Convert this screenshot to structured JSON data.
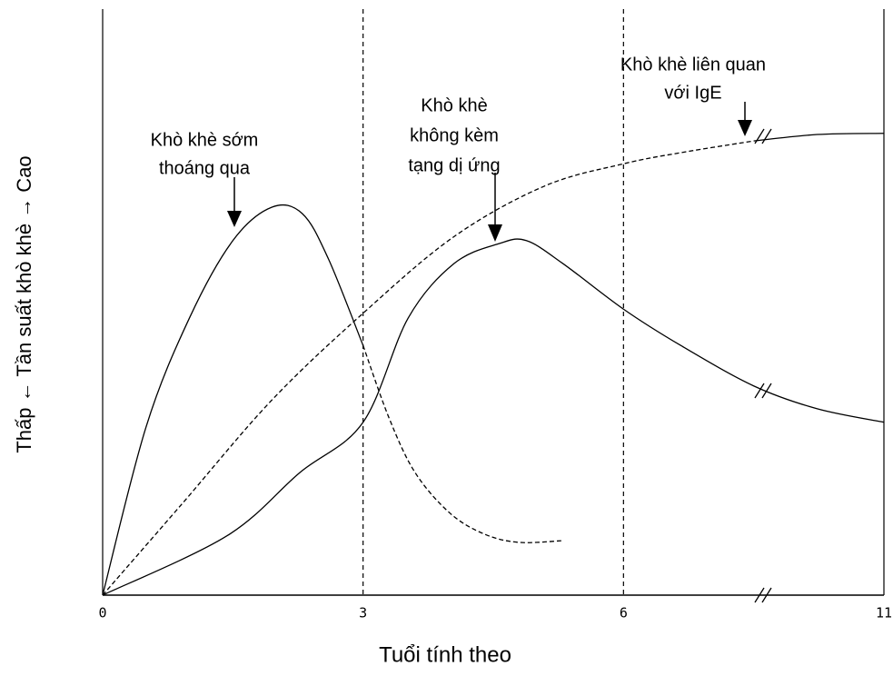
{
  "chart_data": {
    "type": "line",
    "x_label": "Tuổi tính theo",
    "y_label": "Thấp ← Tần suất khò khè → Cao",
    "xlim": [
      0,
      11
    ],
    "xticks": [
      0,
      3,
      6,
      11
    ],
    "axis_break": true,
    "ylim": [
      0,
      100
    ],
    "series": [
      {
        "color": "#000000",
        "style": "solid",
        "x": [
          0,
          0.5,
          1,
          1.5,
          1.95,
          2.3,
          2.6,
          3
        ],
        "values": [
          0,
          28.7,
          47.3,
          60.5,
          66.2,
          65.1,
          57.4,
          42.6
        ]
      },
      {
        "color": "#000000",
        "style": "dashed",
        "x": [
          3,
          3.3,
          3.6,
          4,
          4.4,
          4.8,
          5.3
        ],
        "values": [
          42.6,
          30.2,
          20.9,
          14.0,
          10.4,
          9.0,
          9.3
        ]
      },
      {
        "color": "#000000",
        "style": "solid",
        "x": [
          0,
          1.43,
          2.27,
          3,
          3.52,
          4.05,
          4.57,
          4.88,
          5.3,
          6,
          7.1,
          8.5,
          9.72,
          11
        ],
        "values": [
          0,
          10.1,
          20.9,
          29.5,
          47.3,
          56.6,
          60.0,
          60.5,
          56.6,
          48.8,
          42.6,
          35.7,
          31.8,
          29.5
        ]
      },
      {
        "color": "#000000",
        "style": "dashed",
        "x": [
          0,
          0.91,
          1.95,
          3,
          4.05,
          5.09,
          6,
          7.1,
          8.5
        ],
        "values": [
          0,
          15.5,
          33.3,
          48.1,
          61.2,
          69.8,
          73.6,
          75.5,
          77.5
        ]
      },
      {
        "color": "#000000",
        "style": "solid",
        "x": [
          8.5,
          9.72,
          11
        ],
        "values": [
          77.5,
          78.6,
          78.8
        ]
      }
    ],
    "annotations": [
      {
        "lines": [
          "Khò khè sớm",
          "thoáng qua"
        ]
      },
      {
        "lines": [
          "Khò khè",
          "không kèm",
          "tạng dị ứng"
        ]
      },
      {
        "lines": [
          "Khò khè liên quan",
          "với IgE"
        ]
      }
    ]
  }
}
